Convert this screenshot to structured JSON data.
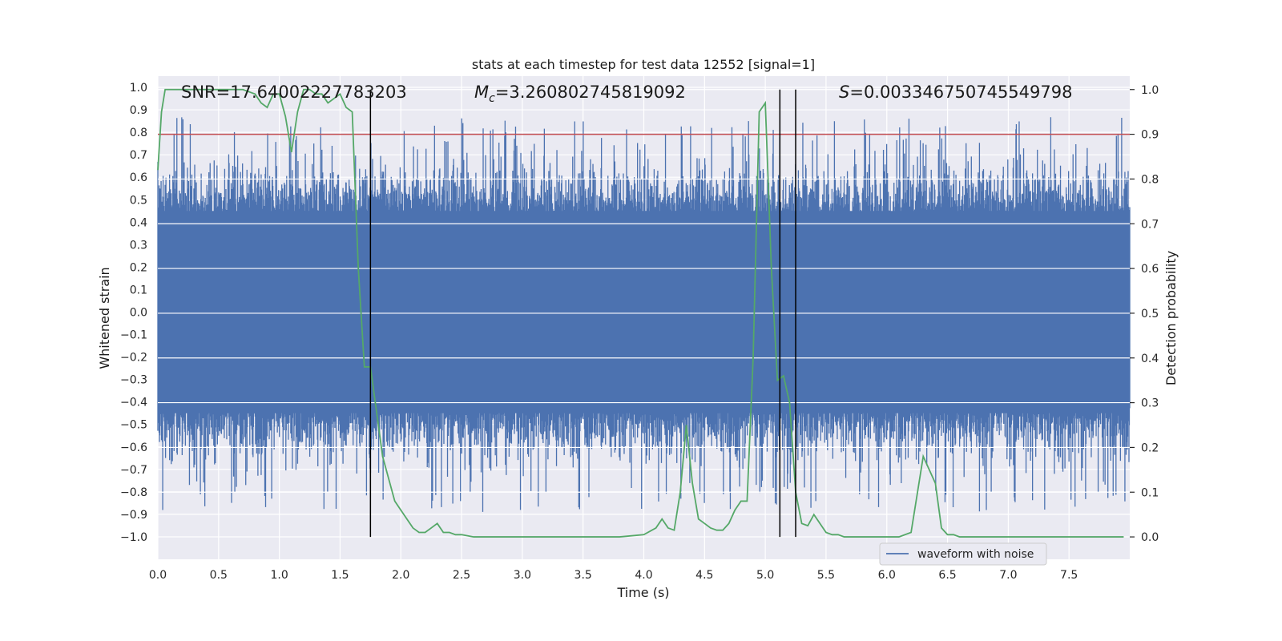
{
  "chart_data": {
    "type": "line",
    "title": "stats at each timestep for test data 12552 [signal=1]",
    "xlabel": "Time (s)",
    "ylabel_left": "Whitened strain",
    "ylabel_right": "Detection probability",
    "xlim": [
      0.0,
      8.0
    ],
    "ylim_left": [
      -1.1,
      1.05
    ],
    "ylim_right": [
      -0.05,
      1.03
    ],
    "x_ticks": [
      0.0,
      0.5,
      1.0,
      1.5,
      2.0,
      2.5,
      3.0,
      3.5,
      4.0,
      4.5,
      5.0,
      5.5,
      6.0,
      6.5,
      7.0,
      7.5
    ],
    "x_tick_labels": [
      "0.0",
      "0.5",
      "1.0",
      "1.5",
      "2.0",
      "2.5",
      "3.0",
      "3.5",
      "4.0",
      "4.5",
      "5.0",
      "5.5",
      "6.0",
      "6.5",
      "7.0",
      "7.5"
    ],
    "y_left_ticks": [
      1.0,
      0.9,
      0.8,
      0.7,
      0.6,
      0.5,
      0.4,
      0.3,
      0.2,
      0.1,
      0.0,
      -0.1,
      -0.2,
      -0.3,
      -0.4,
      -0.5,
      -0.6,
      -0.7,
      -0.8,
      -0.9,
      -1.0
    ],
    "y_left_tick_labels": [
      "1.0",
      "0.9",
      "0.8",
      "0.7",
      "0.6",
      "0.5",
      "0.4",
      "0.3",
      "0.2",
      "0.1",
      "0.0",
      "−0.1",
      "−0.2",
      "−0.3",
      "−0.4",
      "−0.5",
      "−0.6",
      "−0.7",
      "−0.8",
      "−0.9",
      "−1.0"
    ],
    "y_right_ticks": [
      1.0,
      0.9,
      0.8,
      0.7,
      0.6,
      0.5,
      0.4,
      0.3,
      0.2,
      0.1,
      0.0
    ],
    "y_right_tick_labels": [
      "1.0",
      "0.9",
      "0.8",
      "0.7",
      "0.6",
      "0.5",
      "0.4",
      "0.3",
      "0.2",
      "0.1",
      "0.0"
    ],
    "annotations": [
      {
        "id": "snr",
        "text": "SNR=17.64002227783203",
        "x": 0.2
      },
      {
        "id": "mc",
        "text_main": "M",
        "text_sub": "c",
        "text_rest": "=3.260802745819092",
        "x": 2.6
      },
      {
        "id": "s",
        "text_main": "S",
        "text_rest": "=0.003346750745549798",
        "x": 5.7
      }
    ],
    "threshold": {
      "axis": "right",
      "value": 0.9,
      "color": "#c44e52"
    },
    "vertical_lines": [
      {
        "x": 1.75,
        "ymin_right": 0.0,
        "ymax_right": 1.0
      },
      {
        "x": 5.12,
        "ymin_right": 0.0,
        "ymax_right": 1.0
      },
      {
        "x": 5.25,
        "ymin_right": 0.0,
        "ymax_right": 1.0
      }
    ],
    "series": [
      {
        "name": "waveform with noise",
        "axis": "left",
        "kind": "dense_noise",
        "color": "#4c72b0",
        "envelope_core": 0.45,
        "max_peak": 0.95,
        "min_peak": -0.97
      },
      {
        "name": "detection probability",
        "axis": "right",
        "color": "#55a868",
        "x": [
          0.0,
          0.03,
          0.06,
          0.1,
          0.15,
          0.2,
          0.3,
          0.4,
          0.5,
          0.6,
          0.7,
          0.8,
          0.85,
          0.9,
          0.95,
          1.0,
          1.05,
          1.1,
          1.15,
          1.2,
          1.25,
          1.3,
          1.35,
          1.4,
          1.45,
          1.5,
          1.55,
          1.6,
          1.65,
          1.7,
          1.75,
          1.8,
          1.85,
          1.9,
          1.95,
          2.0,
          2.05,
          2.1,
          2.15,
          2.2,
          2.25,
          2.3,
          2.35,
          2.4,
          2.45,
          2.5,
          2.6,
          2.7,
          2.8,
          3.0,
          3.2,
          3.4,
          3.6,
          3.8,
          4.0,
          4.1,
          4.15,
          4.2,
          4.25,
          4.3,
          4.35,
          4.4,
          4.45,
          4.5,
          4.55,
          4.6,
          4.65,
          4.7,
          4.75,
          4.8,
          4.85,
          4.9,
          4.95,
          5.0,
          5.05,
          5.1,
          5.15,
          5.2,
          5.25,
          5.3,
          5.35,
          5.4,
          5.45,
          5.5,
          5.55,
          5.6,
          5.65,
          5.7,
          5.75,
          5.8,
          5.9,
          6.0,
          6.1,
          6.2,
          6.3,
          6.4,
          6.45,
          6.5,
          6.55,
          6.6,
          6.65,
          6.7,
          6.75,
          6.8,
          6.9,
          7.0,
          7.2,
          7.4,
          7.5,
          7.6,
          7.8,
          7.95
        ],
        "y": [
          0.82,
          0.95,
          1.0,
          1.0,
          1.0,
          1.0,
          1.0,
          1.0,
          1.0,
          1.0,
          1.0,
          0.99,
          0.97,
          0.96,
          0.99,
          0.99,
          0.94,
          0.86,
          0.95,
          1.0,
          1.0,
          0.99,
          0.99,
          0.97,
          0.98,
          0.99,
          0.96,
          0.95,
          0.6,
          0.38,
          0.38,
          0.28,
          0.18,
          0.13,
          0.08,
          0.06,
          0.04,
          0.02,
          0.01,
          0.01,
          0.02,
          0.03,
          0.01,
          0.01,
          0.005,
          0.005,
          0.0,
          0.0,
          0.0,
          0.0,
          0.0,
          0.0,
          0.0,
          0.0,
          0.005,
          0.02,
          0.04,
          0.02,
          0.015,
          0.1,
          0.25,
          0.12,
          0.04,
          0.03,
          0.02,
          0.015,
          0.015,
          0.03,
          0.06,
          0.08,
          0.08,
          0.4,
          0.95,
          0.97,
          0.6,
          0.35,
          0.36,
          0.3,
          0.1,
          0.03,
          0.025,
          0.05,
          0.03,
          0.01,
          0.005,
          0.005,
          0.0,
          0.0,
          0.0,
          0.0,
          0.0,
          0.0,
          0.0,
          0.01,
          0.18,
          0.12,
          0.02,
          0.005,
          0.005,
          0.0,
          0.0,
          0.0,
          0.0,
          0.0,
          0.0,
          0.0,
          0.0,
          0.0,
          0.0,
          0.0,
          0.0,
          0.0
        ]
      }
    ],
    "legend": {
      "label": "waveform with noise",
      "position": "lower-right"
    }
  }
}
